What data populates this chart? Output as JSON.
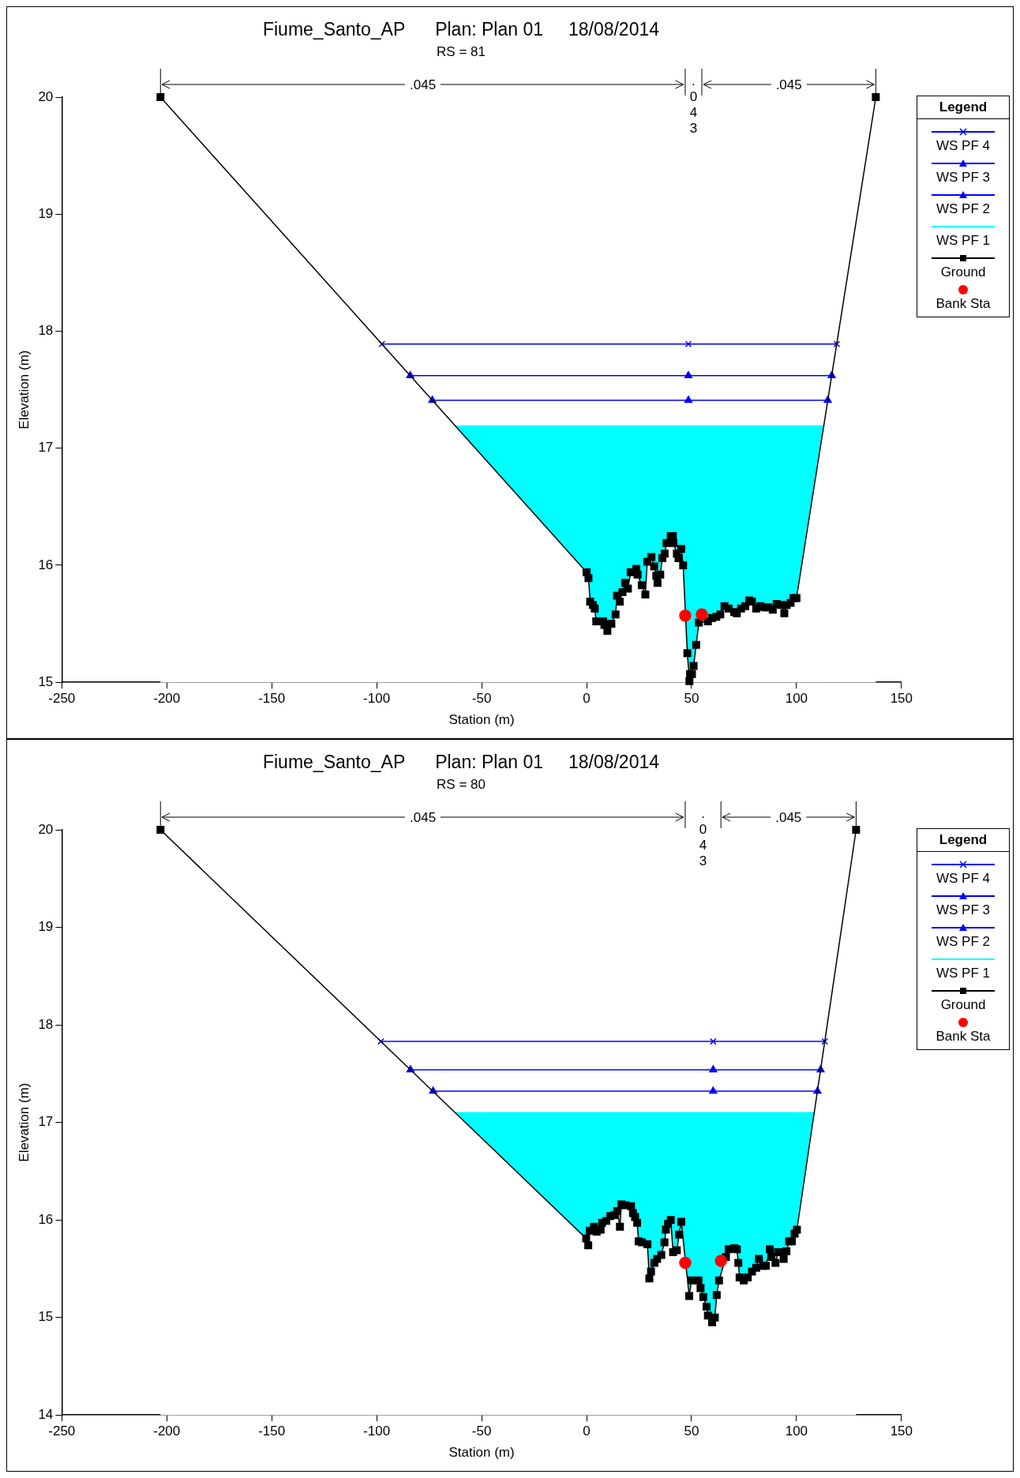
{
  "chart_data": [
    {
      "type": "line",
      "title": "Fiume_Santo_AP      Plan: Plan 01     18/08/2014",
      "subtitle": "RS = 81",
      "xlabel": "Station (m)",
      "ylabel": "Elevation (m)",
      "legend_title": "Legend",
      "legend": "top right",
      "grid": false,
      "xlim": [
        -250,
        150
      ],
      "xticks": [
        -250,
        -200,
        -150,
        -100,
        -50,
        0,
        50,
        100,
        150
      ],
      "ylim": [
        15,
        20
      ],
      "yticks": [
        15,
        16,
        17,
        18,
        19,
        20
      ],
      "annotations": [
        ".045",
        ".043",
        ".045"
      ],
      "series": [
        {
          "name": "WS PF 4",
          "type": "line",
          "color": "#0000ff",
          "marker": "cross",
          "x": [
            -97.5,
            48.5,
            119.2
          ],
          "values": [
            17.89,
            17.89,
            17.89
          ]
        },
        {
          "name": "WS PF 3",
          "type": "line",
          "color": "#0000ff",
          "marker": "triangle",
          "x": [
            -84.0,
            48.5,
            116.8
          ],
          "values": [
            17.62,
            17.62,
            17.62
          ]
        },
        {
          "name": "WS PF 2",
          "type": "line",
          "color": "#0000ff",
          "marker": "triangle",
          "x": [
            -73.5,
            48.5,
            114.9
          ],
          "values": [
            17.41,
            17.41,
            17.41
          ]
        },
        {
          "name": "WS PF 1",
          "type": "area",
          "color": "#00ffff",
          "marker": "none",
          "x": [
            -62.5,
            113.0
          ],
          "values": [
            17.19,
            17.19
          ]
        },
        {
          "name": "Ground",
          "type": "line",
          "color": "#000000",
          "marker": "square",
          "x": [
            -203,
            0,
            0.9,
            1.7,
            3.0,
            3.9,
            4.6,
            6.6,
            7.9,
            8.5,
            9.9,
            11.8,
            13.8,
            14.5,
            15.8,
            17.1,
            18.4,
            19.7,
            21.0,
            23.7,
            24.3,
            26.3,
            28.0,
            28.9,
            30.9,
            32.2,
            33.2,
            33.8,
            35.1,
            36.1,
            37.2,
            38.1,
            40.1,
            41.1,
            41.4,
            43.0,
            43.8,
            45.1,
            46.0,
            48.0,
            49.0,
            49.3,
            50.2,
            51.0,
            52.2,
            53.5,
            57.8,
            59.8,
            61.8,
            63.7,
            65.7,
            67.7,
            70.3,
            71.6,
            73.6,
            75.6,
            77.5,
            78.8,
            80.8,
            82.8,
            84.8,
            86.7,
            88.7,
            90.6,
            92.6,
            94.2,
            95.3,
            97.2,
            98.6,
            100,
            137.8
          ],
          "values": [
            20,
            15.94,
            15.89,
            15.69,
            15.66,
            15.63,
            15.52,
            15.52,
            15.52,
            15.49,
            15.44,
            15.5,
            15.58,
            15.74,
            15.69,
            15.77,
            15.85,
            15.8,
            15.94,
            15.97,
            15.92,
            15.83,
            15.75,
            16.03,
            16.07,
            15.99,
            15.91,
            15.85,
            15.92,
            16.06,
            16.1,
            16.19,
            16.25,
            16.25,
            16.19,
            16.1,
            16.06,
            16.14,
            16.0,
            15.25,
            15.01,
            15.07,
            15.07,
            15.14,
            15.32,
            15.51,
            15.52,
            15.55,
            15.56,
            15.58,
            15.65,
            15.63,
            15.6,
            15.59,
            15.63,
            15.65,
            15.7,
            15.69,
            15.63,
            15.65,
            15.64,
            15.64,
            15.62,
            15.67,
            15.66,
            15.59,
            15.66,
            15.68,
            15.72,
            15.72,
            20
          ]
        },
        {
          "name": "Bank Sta",
          "type": "scatter",
          "color": "#ff0000",
          "marker": "circle",
          "x": [
            47.0,
            54.9
          ],
          "values": [
            15.57,
            15.58
          ]
        }
      ]
    },
    {
      "type": "line",
      "title": "Fiume_Santo_AP      Plan: Plan 01     18/08/2014",
      "subtitle": "RS = 80",
      "xlabel": "Station (m)",
      "ylabel": "Elevation (m)",
      "legend_title": "Legend",
      "legend": "top right",
      "grid": false,
      "xlim": [
        -250,
        150
      ],
      "xticks": [
        -250,
        -200,
        -150,
        -100,
        -50,
        0,
        50,
        100,
        150
      ],
      "ylim": [
        14,
        20
      ],
      "yticks": [
        14,
        15,
        16,
        17,
        18,
        19,
        20
      ],
      "annotations": [
        ".045",
        ".043",
        ".045"
      ],
      "series": [
        {
          "name": "WS PF 4",
          "type": "line",
          "color": "#0000ff",
          "marker": "cross",
          "x": [
            -98.0,
            60.3,
            113.5
          ],
          "values": [
            17.83,
            17.83,
            17.83
          ]
        },
        {
          "name": "WS PF 3",
          "type": "line",
          "color": "#0000ff",
          "marker": "triangle",
          "x": [
            -83.9,
            60.3,
            111.5
          ],
          "values": [
            17.54,
            17.54,
            17.54
          ]
        },
        {
          "name": "WS PF 2",
          "type": "line",
          "color": "#0000ff",
          "marker": "triangle",
          "x": [
            -73.1,
            60.3,
            110.0
          ],
          "values": [
            17.32,
            17.32,
            17.32
          ]
        },
        {
          "name": "WS PF 1",
          "type": "area",
          "color": "#00ffff",
          "marker": "none",
          "x": [
            -62.4,
            108.5
          ],
          "values": [
            17.1,
            17.1
          ]
        },
        {
          "name": "Ground",
          "type": "line",
          "color": "#000000",
          "marker": "square",
          "x": [
            -203,
            -0.2,
            0.8,
            1.5,
            3.5,
            4.8,
            6.7,
            7.4,
            9.4,
            11.3,
            13.3,
            14.6,
            15.9,
            16.6,
            18.5,
            21.2,
            22.1,
            23.1,
            24.1,
            24.8,
            26.4,
            29.0,
            29.9,
            30.7,
            32.3,
            33.6,
            35.6,
            37.1,
            37.8,
            38.8,
            40.1,
            41.2,
            43.0,
            44.1,
            45.1,
            48.9,
            50.0,
            53.3,
            54.3,
            55.6,
            57.2,
            57.8,
            59.8,
            61.1,
            62.0,
            63.1,
            66.4,
            67.7,
            70.3,
            71.6,
            72.3,
            72.9,
            74.9,
            76.8,
            78.8,
            80.8,
            82.1,
            84.1,
            85.4,
            87.3,
            88.0,
            90.0,
            91.2,
            92.6,
            93.9,
            95.2,
            96.5,
            97.8,
            99.1,
            100.2,
            128.4
          ],
          "values": [
            20,
            15.81,
            15.74,
            15.89,
            15.93,
            15.88,
            15.9,
            15.97,
            15.99,
            16.04,
            16.05,
            16.09,
            15.93,
            16.16,
            16.15,
            16.14,
            16.07,
            16.03,
            15.97,
            15.78,
            15.77,
            15.75,
            15.4,
            15.47,
            15.56,
            15.6,
            15.64,
            15.77,
            15.9,
            15.96,
            16.0,
            15.67,
            15.69,
            15.85,
            15.98,
            15.22,
            15.38,
            15.38,
            15.3,
            15.21,
            15.11,
            15.02,
            14.95,
            15.0,
            15.23,
            15.38,
            15.62,
            15.7,
            15.71,
            15.7,
            15.56,
            15.41,
            15.38,
            15.41,
            15.47,
            15.51,
            15.6,
            15.53,
            15.53,
            15.7,
            15.62,
            15.56,
            15.67,
            15.67,
            15.6,
            15.68,
            15.78,
            15.78,
            15.86,
            15.9,
            20
          ]
        },
        {
          "name": "Bank Sta",
          "type": "scatter",
          "color": "#ff0000",
          "marker": "circle",
          "x": [
            47.0,
            64.0
          ],
          "values": [
            15.56,
            15.58
          ]
        }
      ]
    }
  ]
}
